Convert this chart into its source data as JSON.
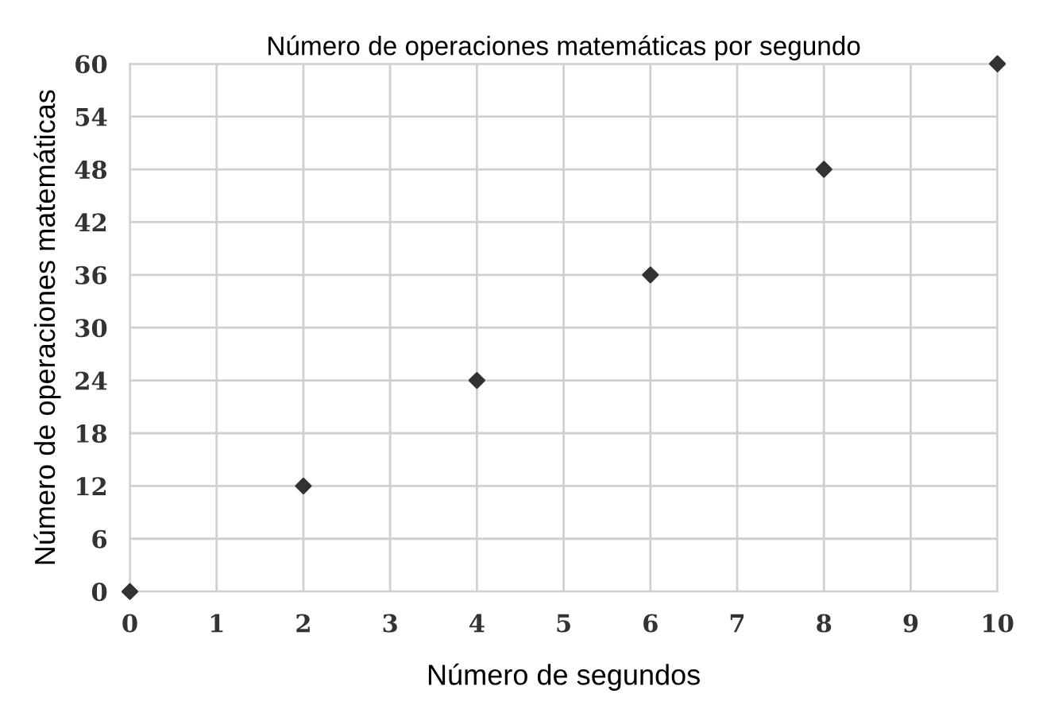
{
  "chart_data": {
    "type": "scatter",
    "title": "Número de operaciones matemáticas por segundo",
    "xlabel": "Número de segundos",
    "ylabel": "Número de operaciones matemáticas",
    "x": [
      0,
      2,
      4,
      6,
      8,
      10
    ],
    "series": [
      {
        "color": "#333333",
        "values": [
          0,
          12,
          24,
          36,
          48,
          60
        ]
      }
    ],
    "xlim": [
      0,
      10
    ],
    "xticks": [
      0,
      1,
      2,
      3,
      4,
      5,
      6,
      7,
      8,
      9,
      10
    ],
    "ylim": [
      0,
      60
    ],
    "yticks": [
      0,
      6,
      12,
      18,
      24,
      30,
      36,
      42,
      48,
      54,
      60
    ],
    "grid": true,
    "marker": "diamond"
  }
}
